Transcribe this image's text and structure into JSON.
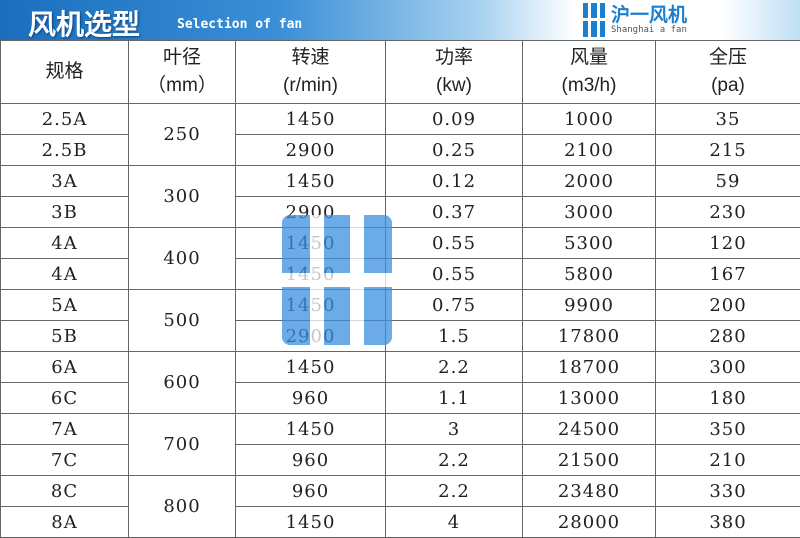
{
  "header": {
    "title": "风机选型",
    "subtitle": "Selection of fan",
    "logo_cn": "沪一风机",
    "logo_en": "Shanghai a fan"
  },
  "table": {
    "columns": [
      {
        "name": "规格",
        "unit": ""
      },
      {
        "name": "叶径",
        "unit": "（mm）"
      },
      {
        "name": "转速",
        "unit": "(r/min)"
      },
      {
        "name": "功率",
        "unit": "(kw)"
      },
      {
        "name": "风量",
        "unit": "(m3/h)"
      },
      {
        "name": "全压",
        "unit": "(pa)"
      }
    ],
    "groups": [
      {
        "diameter": "250",
        "rows": [
          [
            "2.5A",
            "1450",
            "0.09",
            "1000",
            "35"
          ],
          [
            "2.5B",
            "2900",
            "0.25",
            "2100",
            "215"
          ]
        ]
      },
      {
        "diameter": "300",
        "rows": [
          [
            "3A",
            "1450",
            "0.12",
            "2000",
            "59"
          ],
          [
            "3B",
            "2900",
            "0.37",
            "3000",
            "230"
          ]
        ]
      },
      {
        "diameter": "400",
        "rows": [
          [
            "4A",
            "1450",
            "0.55",
            "5300",
            "120"
          ],
          [
            "4A",
            "1450",
            "0.55",
            "5800",
            "167"
          ]
        ]
      },
      {
        "diameter": "500",
        "rows": [
          [
            "5A",
            "1450",
            "0.75",
            "9900",
            "200"
          ],
          [
            "5B",
            "2900",
            "1.5",
            "17800",
            "280"
          ]
        ]
      },
      {
        "diameter": "600",
        "rows": [
          [
            "6A",
            "1450",
            "2.2",
            "18700",
            "300"
          ],
          [
            "6C",
            "960",
            "1.1",
            "13000",
            "180"
          ]
        ]
      },
      {
        "diameter": "700",
        "rows": [
          [
            "7A",
            "1450",
            "3",
            "24500",
            "350"
          ],
          [
            "7C",
            "960",
            "2.2",
            "21500",
            "210"
          ]
        ]
      },
      {
        "diameter": "800",
        "rows": [
          [
            "8C",
            "960",
            "2.2",
            "23480",
            "330"
          ],
          [
            "8A",
            "1450",
            "4",
            "28000",
            "380"
          ]
        ]
      }
    ]
  },
  "watermark": {
    "cn": "沪一风机",
    "en": "Shanghai a fan"
  },
  "colors": {
    "brand": "#1a7fd0"
  }
}
